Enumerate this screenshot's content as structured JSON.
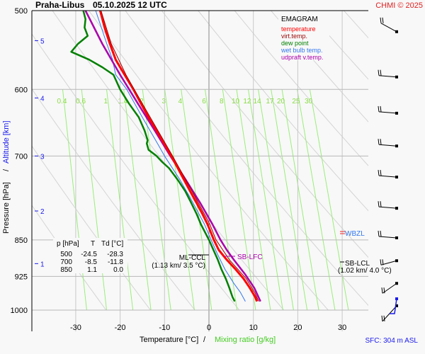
{
  "header": {
    "station": "Praha-Libus",
    "datetime": "05.10.2025 12 UTC",
    "copyright": "CHMI © 2025"
  },
  "legend": {
    "title": "EMAGRAM",
    "items": [
      {
        "label": "temperature",
        "color": "#ff0000"
      },
      {
        "label": "virt.temp.",
        "color": "#990000"
      },
      {
        "label": "dew point",
        "color": "#008000"
      },
      {
        "label": "wet bulb temp.",
        "color": "#3377ee"
      },
      {
        "label": "udpraft v.temp.",
        "color": "#aa00aa"
      }
    ]
  },
  "table": {
    "headers": [
      "p [hPa]",
      "T",
      "Td [°C]"
    ],
    "rows": [
      [
        "500",
        "-24.5",
        "-28.3"
      ],
      [
        "700",
        "-8.5",
        "-11.8"
      ],
      [
        "850",
        "1.1",
        "0.0"
      ]
    ]
  },
  "annotations": {
    "ml_ccl": {
      "label": "ML-CCL",
      "detail": "(1.13 km/ 3.5 °C)"
    },
    "sb_lfc": {
      "label": "SB-LFC"
    },
    "wbzl": {
      "label": "WBZL"
    },
    "sb_lcl": {
      "label": "SB-LCL",
      "detail": "(1.02 km/ 4.0 °C)"
    },
    "sfc": "SFC: 304 m ASL"
  },
  "chart_data": {
    "type": "line",
    "title": "Praha-Libus 05.10.2025 12 UTC",
    "diagram": "EMAGRAM",
    "xlabel": "Temperature [°C]",
    "xlabel2": "Mixing ratio [g/kg]",
    "ylabel": "Pressure [hPa]",
    "ylabel2": "Altitude [km]",
    "xlim": [
      -40,
      40
    ],
    "ylim": [
      500,
      1000
    ],
    "x_ticks": [
      -30,
      -20,
      -10,
      0,
      10,
      20,
      30
    ],
    "y_ticks": [
      500,
      600,
      700,
      850,
      925,
      1000
    ],
    "altitude_ticks": [
      {
        "km": 1,
        "p": 898
      },
      {
        "km": 2,
        "p": 795
      },
      {
        "km": 3,
        "p": 700
      },
      {
        "km": 4,
        "p": 612
      },
      {
        "km": 5,
        "p": 536
      }
    ],
    "mixing_ratio_labels": [
      "0.4",
      "0.6",
      "1",
      "1.4",
      "2",
      "3",
      "4",
      "6",
      "8",
      "10",
      "12",
      "14",
      "17",
      "20",
      "25",
      "30"
    ],
    "mixing_ratio_values": [
      0.4,
      0.6,
      1,
      1.4,
      2,
      3,
      4,
      6,
      8,
      10,
      12,
      14,
      17,
      20,
      25,
      30
    ],
    "grid": true,
    "series": [
      {
        "name": "temperature",
        "color": "#ff0000",
        "points": [
          [
            500,
            -24.5
          ],
          [
            520,
            -23.5
          ],
          [
            540,
            -22.3
          ],
          [
            560,
            -21.0
          ],
          [
            580,
            -19.0
          ],
          [
            600,
            -17.0
          ],
          [
            620,
            -15.3
          ],
          [
            640,
            -13.6
          ],
          [
            660,
            -11.8
          ],
          [
            680,
            -10.1
          ],
          [
            700,
            -8.5
          ],
          [
            720,
            -7.0
          ],
          [
            740,
            -5.6
          ],
          [
            760,
            -4.2
          ],
          [
            780,
            -2.8
          ],
          [
            800,
            -1.5
          ],
          [
            820,
            -0.3
          ],
          [
            850,
            1.1
          ],
          [
            870,
            2.2
          ],
          [
            890,
            4.0
          ],
          [
            910,
            6.0
          ],
          [
            930,
            7.8
          ],
          [
            950,
            9.2
          ],
          [
            970,
            10.4
          ],
          [
            980,
            10.8
          ]
        ]
      },
      {
        "name": "virt.temp.",
        "color": "#990000",
        "points": [
          [
            500,
            -24.3
          ],
          [
            540,
            -22.0
          ],
          [
            580,
            -18.7
          ],
          [
            620,
            -15.0
          ],
          [
            660,
            -11.5
          ],
          [
            700,
            -8.2
          ],
          [
            740,
            -5.2
          ],
          [
            780,
            -2.4
          ],
          [
            820,
            0.2
          ],
          [
            850,
            1.6
          ],
          [
            890,
            4.6
          ],
          [
            930,
            8.4
          ],
          [
            960,
            10.3
          ],
          [
            980,
            11.2
          ]
        ]
      },
      {
        "name": "dew point",
        "color": "#008000",
        "points": [
          [
            500,
            -28.3
          ],
          [
            510,
            -27.8
          ],
          [
            520,
            -28.0
          ],
          [
            530,
            -27.3
          ],
          [
            540,
            -29.5
          ],
          [
            550,
            -31.0
          ],
          [
            560,
            -27.0
          ],
          [
            570,
            -24.0
          ],
          [
            580,
            -21.5
          ],
          [
            600,
            -20.0
          ],
          [
            620,
            -18.0
          ],
          [
            640,
            -15.8
          ],
          [
            660,
            -14.5
          ],
          [
            675,
            -13.8
          ],
          [
            680,
            -14.0
          ],
          [
            690,
            -13.6
          ],
          [
            700,
            -11.8
          ],
          [
            710,
            -10.5
          ],
          [
            720,
            -9.0
          ],
          [
            740,
            -7.0
          ],
          [
            760,
            -5.3
          ],
          [
            780,
            -4.0
          ],
          [
            800,
            -2.8
          ],
          [
            820,
            -1.8
          ],
          [
            850,
            0.0
          ],
          [
            870,
            1.0
          ],
          [
            890,
            2.0
          ],
          [
            910,
            2.8
          ],
          [
            930,
            3.8
          ],
          [
            950,
            4.6
          ],
          [
            970,
            5.3
          ],
          [
            980,
            5.8
          ]
        ]
      },
      {
        "name": "wet bulb temp.",
        "color": "#3377ee",
        "points": [
          [
            500,
            -25.5
          ],
          [
            540,
            -23.0
          ],
          [
            560,
            -21.7
          ],
          [
            580,
            -21.0
          ],
          [
            600,
            -18.5
          ],
          [
            640,
            -15.0
          ],
          [
            680,
            -11.6
          ],
          [
            700,
            -10.0
          ],
          [
            740,
            -6.5
          ],
          [
            780,
            -3.6
          ],
          [
            820,
            -1.0
          ],
          [
            850,
            0.5
          ],
          [
            880,
            2.0
          ],
          [
            910,
            3.6
          ],
          [
            940,
            5.6
          ],
          [
            960,
            7.1
          ],
          [
            980,
            8.2
          ]
        ]
      },
      {
        "name": "udpraft v.temp.",
        "color": "#aa00aa",
        "points": [
          [
            500,
            -27.8
          ],
          [
            540,
            -24.0
          ],
          [
            580,
            -20.0
          ],
          [
            620,
            -16.0
          ],
          [
            660,
            -12.2
          ],
          [
            700,
            -8.7
          ],
          [
            740,
            -5.2
          ],
          [
            780,
            -2.0
          ],
          [
            820,
            0.8
          ],
          [
            850,
            2.6
          ],
          [
            870,
            4.0
          ],
          [
            890,
            5.6
          ],
          [
            920,
            8.1
          ],
          [
            950,
            10.2
          ],
          [
            980,
            11.6
          ]
        ]
      }
    ],
    "wind_barbs_pressure": [
      525,
      583,
      634,
      684,
      735,
      790,
      846,
      892,
      940,
      990
    ]
  }
}
